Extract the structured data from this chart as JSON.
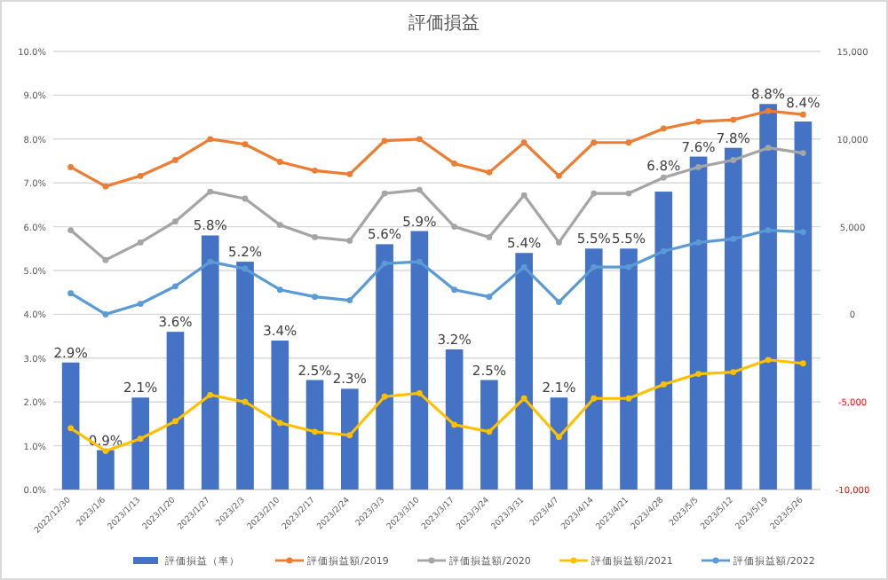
{
  "chart_data": {
    "type": "bar",
    "title": "評価損益",
    "categories": [
      "2022/12/30",
      "2023/1/6",
      "2023/1/13",
      "2023/1/20",
      "2023/1/27",
      "2023/2/3",
      "2023/2/10",
      "2023/2/17",
      "2023/2/24",
      "2023/3/3",
      "2023/3/10",
      "2023/3/17",
      "2023/3/24",
      "2023/3/31",
      "2023/4/7",
      "2023/4/14",
      "2023/4/21",
      "2023/4/28",
      "2023/5/5",
      "2023/5/12",
      "2023/5/19",
      "2023/5/26"
    ],
    "series": [
      {
        "name": "評価損益（率）",
        "color": "#4472c4",
        "values": [
          2.9,
          0.9,
          2.1,
          3.6,
          5.8,
          5.2,
          3.4,
          2.5,
          2.3,
          5.6,
          5.9,
          3.2,
          2.5,
          5.4,
          2.1,
          5.5,
          5.5,
          6.8,
          7.6,
          7.8,
          8.8,
          8.4
        ],
        "value_labels": [
          "2.9%",
          "0.9%",
          "2.1%",
          "3.6%",
          "5.8%",
          "5.2%",
          "3.4%",
          "2.5%",
          "2.3%",
          "5.6%",
          "5.9%",
          "3.2%",
          "2.5%",
          "5.4%",
          "2.1%",
          "5.5%",
          "5.5%",
          "6.8%",
          "7.6%",
          "7.8%",
          "8.8%",
          "8.4%"
        ]
      },
      {
        "name": "評価損益額/2019",
        "type": "line",
        "axis": "y2",
        "color": "#ed7d31",
        "values": [
          8400,
          7300,
          7900,
          8800,
          10000,
          9700,
          8700,
          8200,
          8000,
          9900,
          10000,
          8600,
          8100,
          9800,
          7900,
          9800,
          9800,
          10600,
          11000,
          11100,
          11600,
          11400
        ]
      },
      {
        "name": "評価損益額/2020",
        "type": "line",
        "axis": "y2",
        "color": "#a5a5a5",
        "values": [
          4800,
          3100,
          4100,
          5300,
          7000,
          6600,
          5100,
          4400,
          4200,
          6900,
          7100,
          5000,
          4400,
          6800,
          4100,
          6900,
          6900,
          7800,
          8400,
          8800,
          9500,
          9200
        ]
      },
      {
        "name": "評価損益額/2021",
        "type": "line",
        "axis": "y2",
        "color": "#ffc000",
        "values": [
          -6500,
          -7800,
          -7100,
          -6100,
          -4600,
          -5000,
          -6200,
          -6700,
          -6900,
          -4700,
          -4500,
          -6300,
          -6700,
          -4800,
          -7000,
          -4800,
          -4800,
          -4000,
          -3400,
          -3300,
          -2600,
          -2800
        ]
      },
      {
        "name": "評価損益額/2022",
        "type": "line",
        "axis": "y2",
        "color": "#5b9bd5",
        "values": [
          1200,
          0,
          600,
          1600,
          3000,
          2600,
          1400,
          1000,
          800,
          2900,
          3000,
          1400,
          1000,
          2700,
          700,
          2700,
          2700,
          3600,
          4100,
          4300,
          4800,
          4700
        ]
      }
    ],
    "ylim": [
      0,
      10
    ],
    "yticks": [
      {
        "value": 0,
        "label": "0.0%"
      },
      {
        "value": 1,
        "label": "1.0%"
      },
      {
        "value": 2,
        "label": "2.0%"
      },
      {
        "value": 3,
        "label": "3.0%"
      },
      {
        "value": 4,
        "label": "4.0%"
      },
      {
        "value": 5,
        "label": "5.0%"
      },
      {
        "value": 6,
        "label": "6.0%"
      },
      {
        "value": 7,
        "label": "7.0%"
      },
      {
        "value": 8,
        "label": "8.0%"
      },
      {
        "value": 9,
        "label": "9.0%"
      },
      {
        "value": 10,
        "label": "10.0%"
      }
    ],
    "y2lim": [
      -10000,
      15000
    ],
    "y2ticks": [
      {
        "value": -10000,
        "label": "-10,000"
      },
      {
        "value": -5000,
        "label": "-5,000"
      },
      {
        "value": 0,
        "label": "0"
      },
      {
        "value": 5000,
        "label": "5,000"
      },
      {
        "value": 10000,
        "label": "10,000"
      },
      {
        "value": 15000,
        "label": "15,000"
      }
    ],
    "grid": "y",
    "legend": "bottom",
    "marker": "circle"
  }
}
